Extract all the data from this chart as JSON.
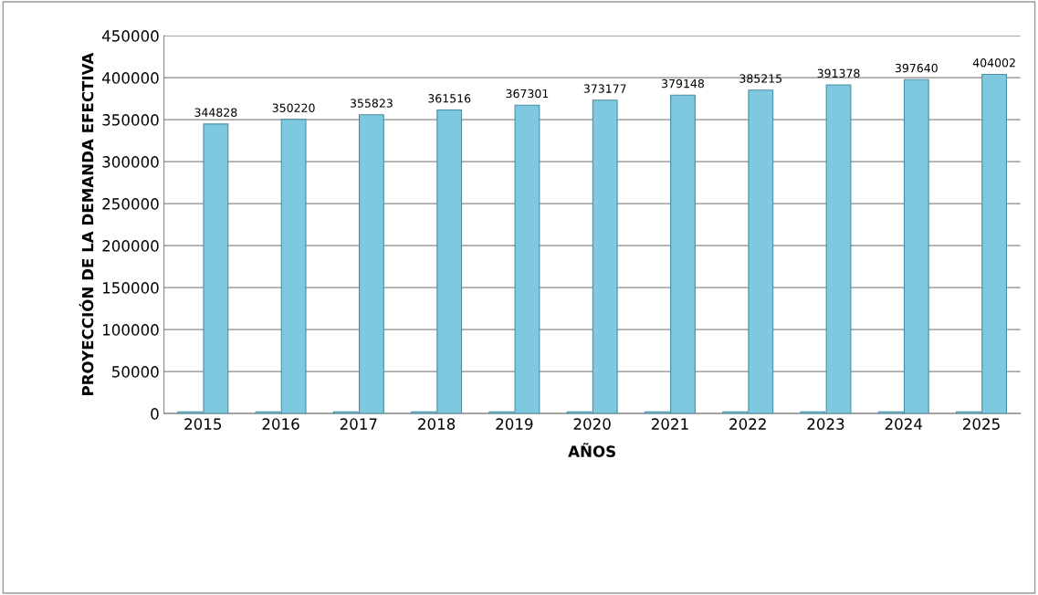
{
  "chart_data": {
    "type": "bar",
    "xlabel": "AÑOS",
    "ylabel": "PROYECCIÓN DE LA DEMANDA EFECTIVA",
    "categories": [
      "2015",
      "2016",
      "2017",
      "2018",
      "2019",
      "2020",
      "2021",
      "2022",
      "2023",
      "2024",
      "2025"
    ],
    "series": [
      {
        "color": "#7ec8e0",
        "values": [
          2015,
          2016,
          2017,
          2018,
          2019,
          2020,
          2021,
          2022,
          2023,
          2024,
          2025
        ]
      },
      {
        "color": "#7ec8e0",
        "values": [
          344828,
          350220,
          355823,
          361516,
          367301,
          373177,
          379148,
          385215,
          391378,
          397640,
          404002
        ],
        "value_labels": [
          "344828",
          "350220",
          "355823",
          "361516",
          "367301",
          "373177",
          "379148",
          "385215",
          "391378",
          "397640",
          "404002"
        ]
      }
    ],
    "ylim": [
      0,
      450000
    ],
    "yticks": [
      0,
      50000,
      100000,
      150000,
      200000,
      250000,
      300000,
      350000,
      400000,
      450000
    ],
    "grid": "y",
    "legend": false
  }
}
